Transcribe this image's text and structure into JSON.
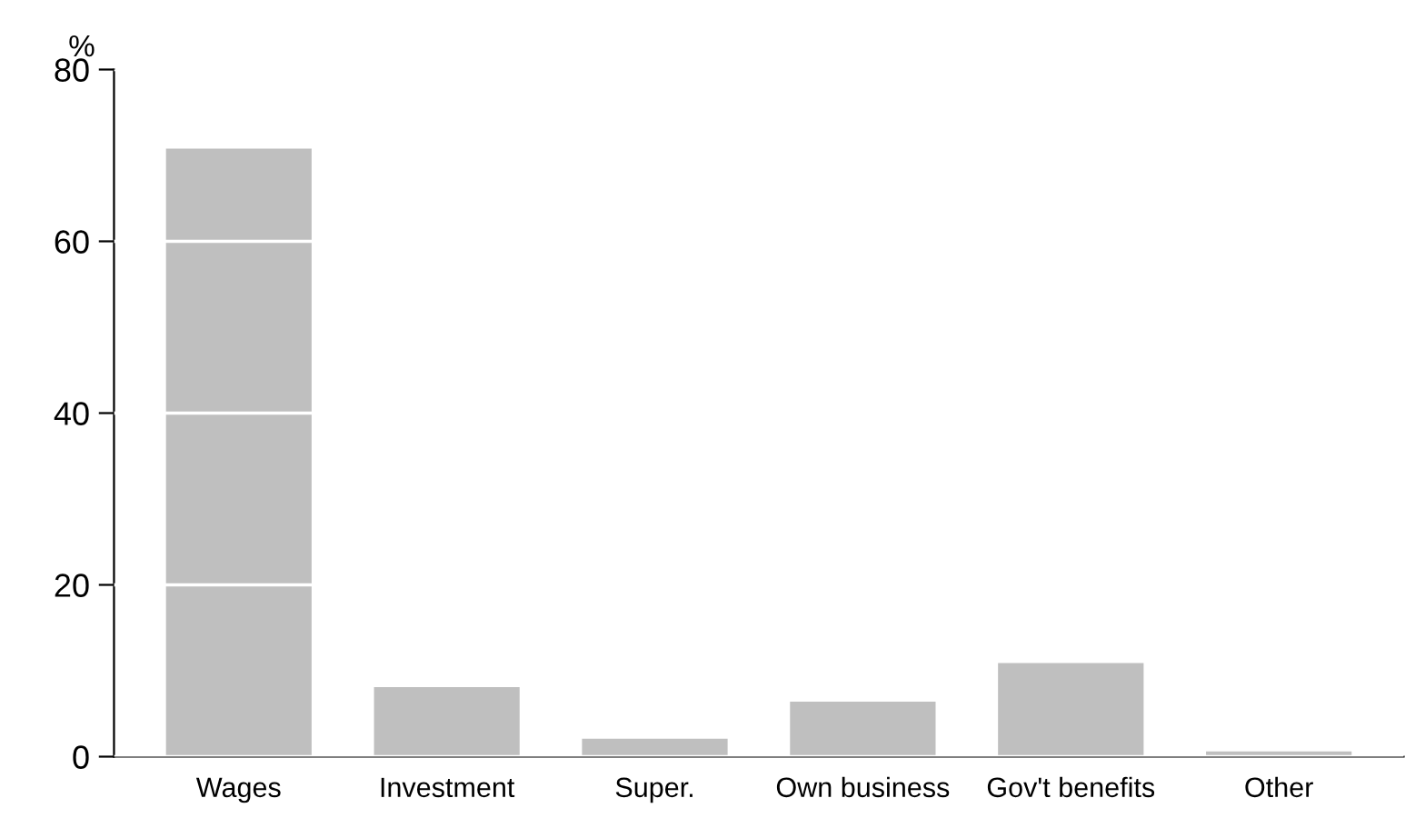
{
  "chart_data": {
    "type": "bar",
    "ylabel": "%",
    "categories": [
      "Wages",
      "Investment",
      "Super.",
      "Own business",
      "Gov't benefits",
      "Other"
    ],
    "values": [
      70.8,
      8.1,
      2.1,
      6.4,
      10.9,
      0.6
    ],
    "color": "#bfbfbf",
    "ylim": [
      0,
      80
    ],
    "yticks": [
      0,
      20,
      40,
      60,
      80
    ],
    "grid": "y"
  }
}
